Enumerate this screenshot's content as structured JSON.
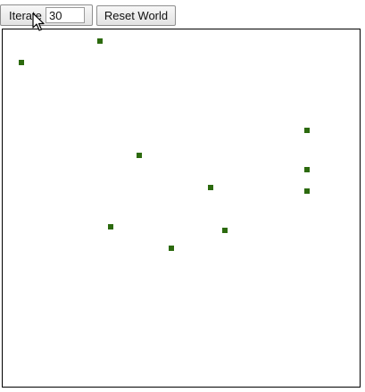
{
  "toolbar": {
    "iterate_label": "Iterate",
    "iterate_count": "30",
    "reset_label": "Reset World"
  },
  "world": {
    "cell_color": "#2c6a0e",
    "live_cells": [
      {
        "col": 27,
        "row": 3
      },
      {
        "col": 5,
        "row": 9
      },
      {
        "col": 85,
        "row": 28
      },
      {
        "col": 38,
        "row": 35
      },
      {
        "col": 85,
        "row": 39
      },
      {
        "col": 58,
        "row": 44
      },
      {
        "col": 85,
        "row": 45
      },
      {
        "col": 30,
        "row": 55
      },
      {
        "col": 62,
        "row": 56
      },
      {
        "col": 47,
        "row": 61
      }
    ]
  },
  "cursor": {
    "icon": "arrow-cursor-icon"
  }
}
